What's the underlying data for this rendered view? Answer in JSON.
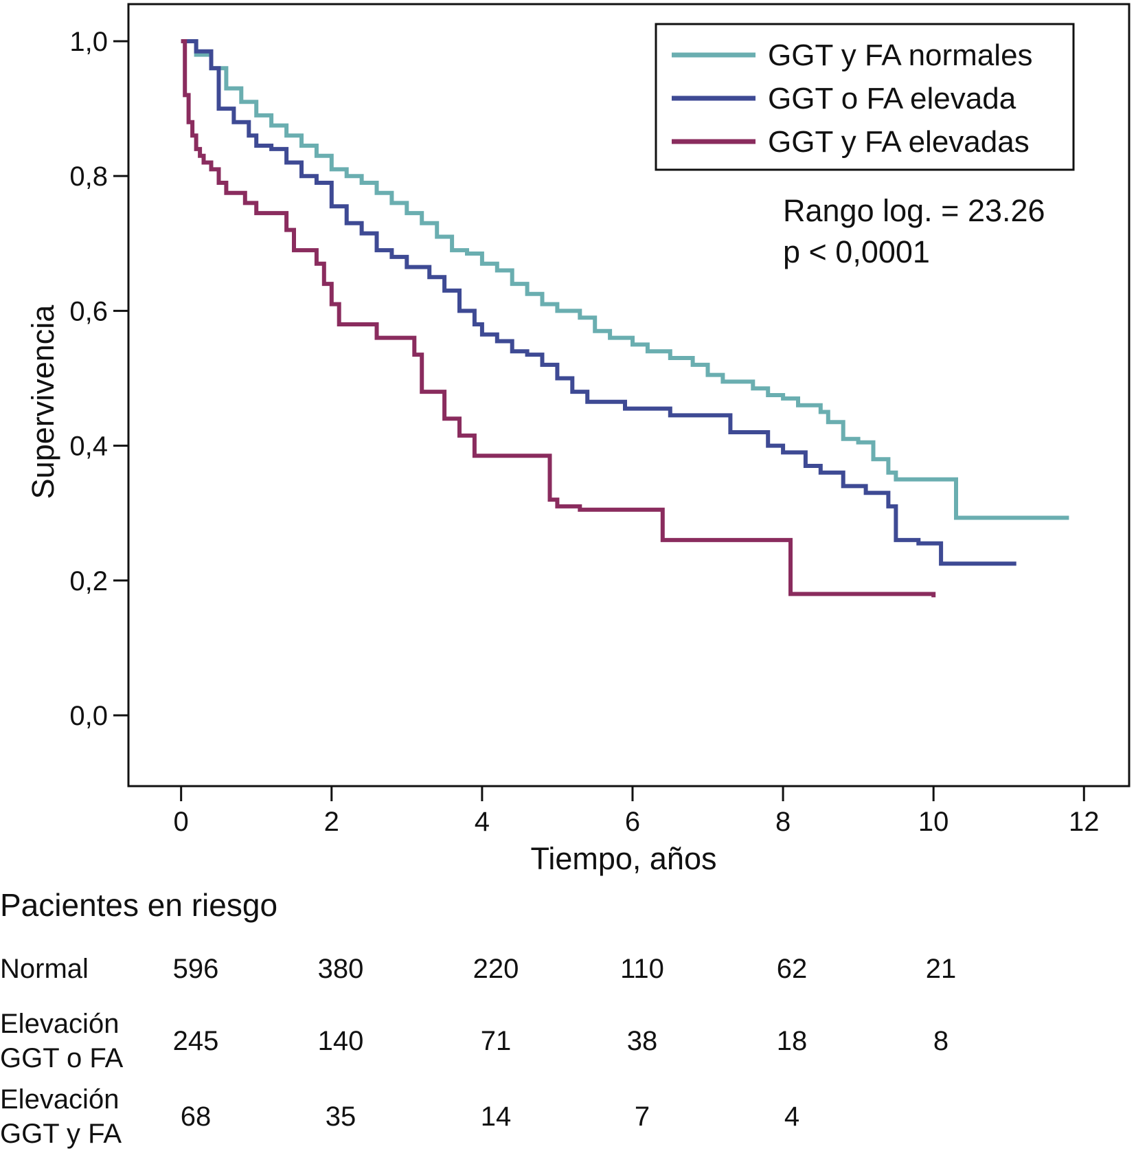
{
  "chart_data": {
    "type": "line",
    "step": true,
    "xlabel": "Tiempo, años",
    "ylabel": "Supervivencia",
    "xlim": [
      -0.7,
      12.6
    ],
    "ylim": [
      -0.105,
      1.055
    ],
    "xticks": [
      "0",
      "2",
      "4",
      "6",
      "8",
      "10",
      "12"
    ],
    "yticks": [
      "0,0",
      "0,2",
      "0,4",
      "0,6",
      "0,8",
      "1,0"
    ],
    "annotation_lines": [
      "Rango log. = 23.26",
      "p < 0,0001"
    ],
    "legend_position": "top-right",
    "series": [
      {
        "name": "GGT y FA normales",
        "color": "#6aaeb0",
        "points": [
          [
            0,
            1.0
          ],
          [
            0.2,
            0.98
          ],
          [
            0.4,
            0.96
          ],
          [
            0.6,
            0.93
          ],
          [
            0.8,
            0.91
          ],
          [
            1.0,
            0.89
          ],
          [
            1.2,
            0.875
          ],
          [
            1.4,
            0.86
          ],
          [
            1.6,
            0.845
          ],
          [
            1.8,
            0.83
          ],
          [
            2.0,
            0.81
          ],
          [
            2.2,
            0.8
          ],
          [
            2.4,
            0.79
          ],
          [
            2.6,
            0.775
          ],
          [
            2.8,
            0.76
          ],
          [
            3.0,
            0.745
          ],
          [
            3.2,
            0.73
          ],
          [
            3.4,
            0.71
          ],
          [
            3.6,
            0.69
          ],
          [
            3.8,
            0.685
          ],
          [
            4.0,
            0.67
          ],
          [
            4.2,
            0.66
          ],
          [
            4.4,
            0.64
          ],
          [
            4.6,
            0.625
          ],
          [
            4.8,
            0.61
          ],
          [
            5.0,
            0.6
          ],
          [
            5.3,
            0.59
          ],
          [
            5.5,
            0.57
          ],
          [
            5.7,
            0.56
          ],
          [
            6.0,
            0.55
          ],
          [
            6.2,
            0.54
          ],
          [
            6.5,
            0.53
          ],
          [
            6.8,
            0.52
          ],
          [
            7.0,
            0.505
          ],
          [
            7.2,
            0.495
          ],
          [
            7.6,
            0.485
          ],
          [
            7.8,
            0.475
          ],
          [
            8.0,
            0.47
          ],
          [
            8.2,
            0.46
          ],
          [
            8.5,
            0.45
          ],
          [
            8.6,
            0.435
          ],
          [
            8.8,
            0.41
          ],
          [
            9.0,
            0.405
          ],
          [
            9.2,
            0.38
          ],
          [
            9.4,
            0.36
          ],
          [
            9.5,
            0.35
          ],
          [
            10.2,
            0.35
          ],
          [
            10.3,
            0.293
          ],
          [
            11.8,
            0.293
          ]
        ]
      },
      {
        "name": "GGT o FA elevada",
        "color": "#3e4a94",
        "points": [
          [
            0,
            1.0
          ],
          [
            0.2,
            0.985
          ],
          [
            0.4,
            0.96
          ],
          [
            0.5,
            0.9
          ],
          [
            0.7,
            0.88
          ],
          [
            0.9,
            0.86
          ],
          [
            1.0,
            0.845
          ],
          [
            1.2,
            0.84
          ],
          [
            1.4,
            0.82
          ],
          [
            1.6,
            0.8
          ],
          [
            1.8,
            0.79
          ],
          [
            2.0,
            0.755
          ],
          [
            2.2,
            0.73
          ],
          [
            2.4,
            0.715
          ],
          [
            2.6,
            0.69
          ],
          [
            2.8,
            0.68
          ],
          [
            3.0,
            0.665
          ],
          [
            3.3,
            0.65
          ],
          [
            3.5,
            0.63
          ],
          [
            3.7,
            0.6
          ],
          [
            3.9,
            0.58
          ],
          [
            4.0,
            0.565
          ],
          [
            4.2,
            0.555
          ],
          [
            4.4,
            0.54
          ],
          [
            4.6,
            0.535
          ],
          [
            4.8,
            0.52
          ],
          [
            5.0,
            0.5
          ],
          [
            5.2,
            0.48
          ],
          [
            5.4,
            0.465
          ],
          [
            5.9,
            0.455
          ],
          [
            6.5,
            0.445
          ],
          [
            7.3,
            0.42
          ],
          [
            7.8,
            0.4
          ],
          [
            8.0,
            0.39
          ],
          [
            8.3,
            0.37
          ],
          [
            8.5,
            0.36
          ],
          [
            8.8,
            0.34
          ],
          [
            9.1,
            0.33
          ],
          [
            9.4,
            0.31
          ],
          [
            9.5,
            0.26
          ],
          [
            9.8,
            0.255
          ],
          [
            10.1,
            0.225
          ],
          [
            11.1,
            0.225
          ]
        ]
      },
      {
        "name": "GGT y FA elevadas",
        "color": "#8a2c5e",
        "points": [
          [
            0,
            1.0
          ],
          [
            0.05,
            0.92
          ],
          [
            0.1,
            0.88
          ],
          [
            0.15,
            0.86
          ],
          [
            0.2,
            0.84
          ],
          [
            0.25,
            0.83
          ],
          [
            0.3,
            0.82
          ],
          [
            0.4,
            0.81
          ],
          [
            0.5,
            0.79
          ],
          [
            0.6,
            0.775
          ],
          [
            0.85,
            0.76
          ],
          [
            1.0,
            0.745
          ],
          [
            1.4,
            0.72
          ],
          [
            1.5,
            0.69
          ],
          [
            1.8,
            0.67
          ],
          [
            1.9,
            0.64
          ],
          [
            2.0,
            0.61
          ],
          [
            2.1,
            0.58
          ],
          [
            2.6,
            0.56
          ],
          [
            3.1,
            0.535
          ],
          [
            3.2,
            0.48
          ],
          [
            3.5,
            0.44
          ],
          [
            3.7,
            0.415
          ],
          [
            3.9,
            0.385
          ],
          [
            4.9,
            0.32
          ],
          [
            5.0,
            0.31
          ],
          [
            5.3,
            0.305
          ],
          [
            6.4,
            0.26
          ],
          [
            8.1,
            0.18
          ],
          [
            10.0,
            0.175
          ]
        ]
      }
    ],
    "risk_table": {
      "title": "Pacientes en riesgo",
      "rows": [
        {
          "label_lines": [
            "Normal"
          ],
          "values": [
            "596",
            "380",
            "220",
            "110",
            "62",
            "21"
          ]
        },
        {
          "label_lines": [
            "Elevación",
            "GGT o FA"
          ],
          "values": [
            "245",
            "140",
            "71",
            "38",
            "18",
            "8"
          ]
        },
        {
          "label_lines": [
            "Elevación",
            "GGT y FA"
          ],
          "values": [
            "68",
            "35",
            "14",
            "7",
            "4",
            ""
          ]
        }
      ]
    }
  }
}
